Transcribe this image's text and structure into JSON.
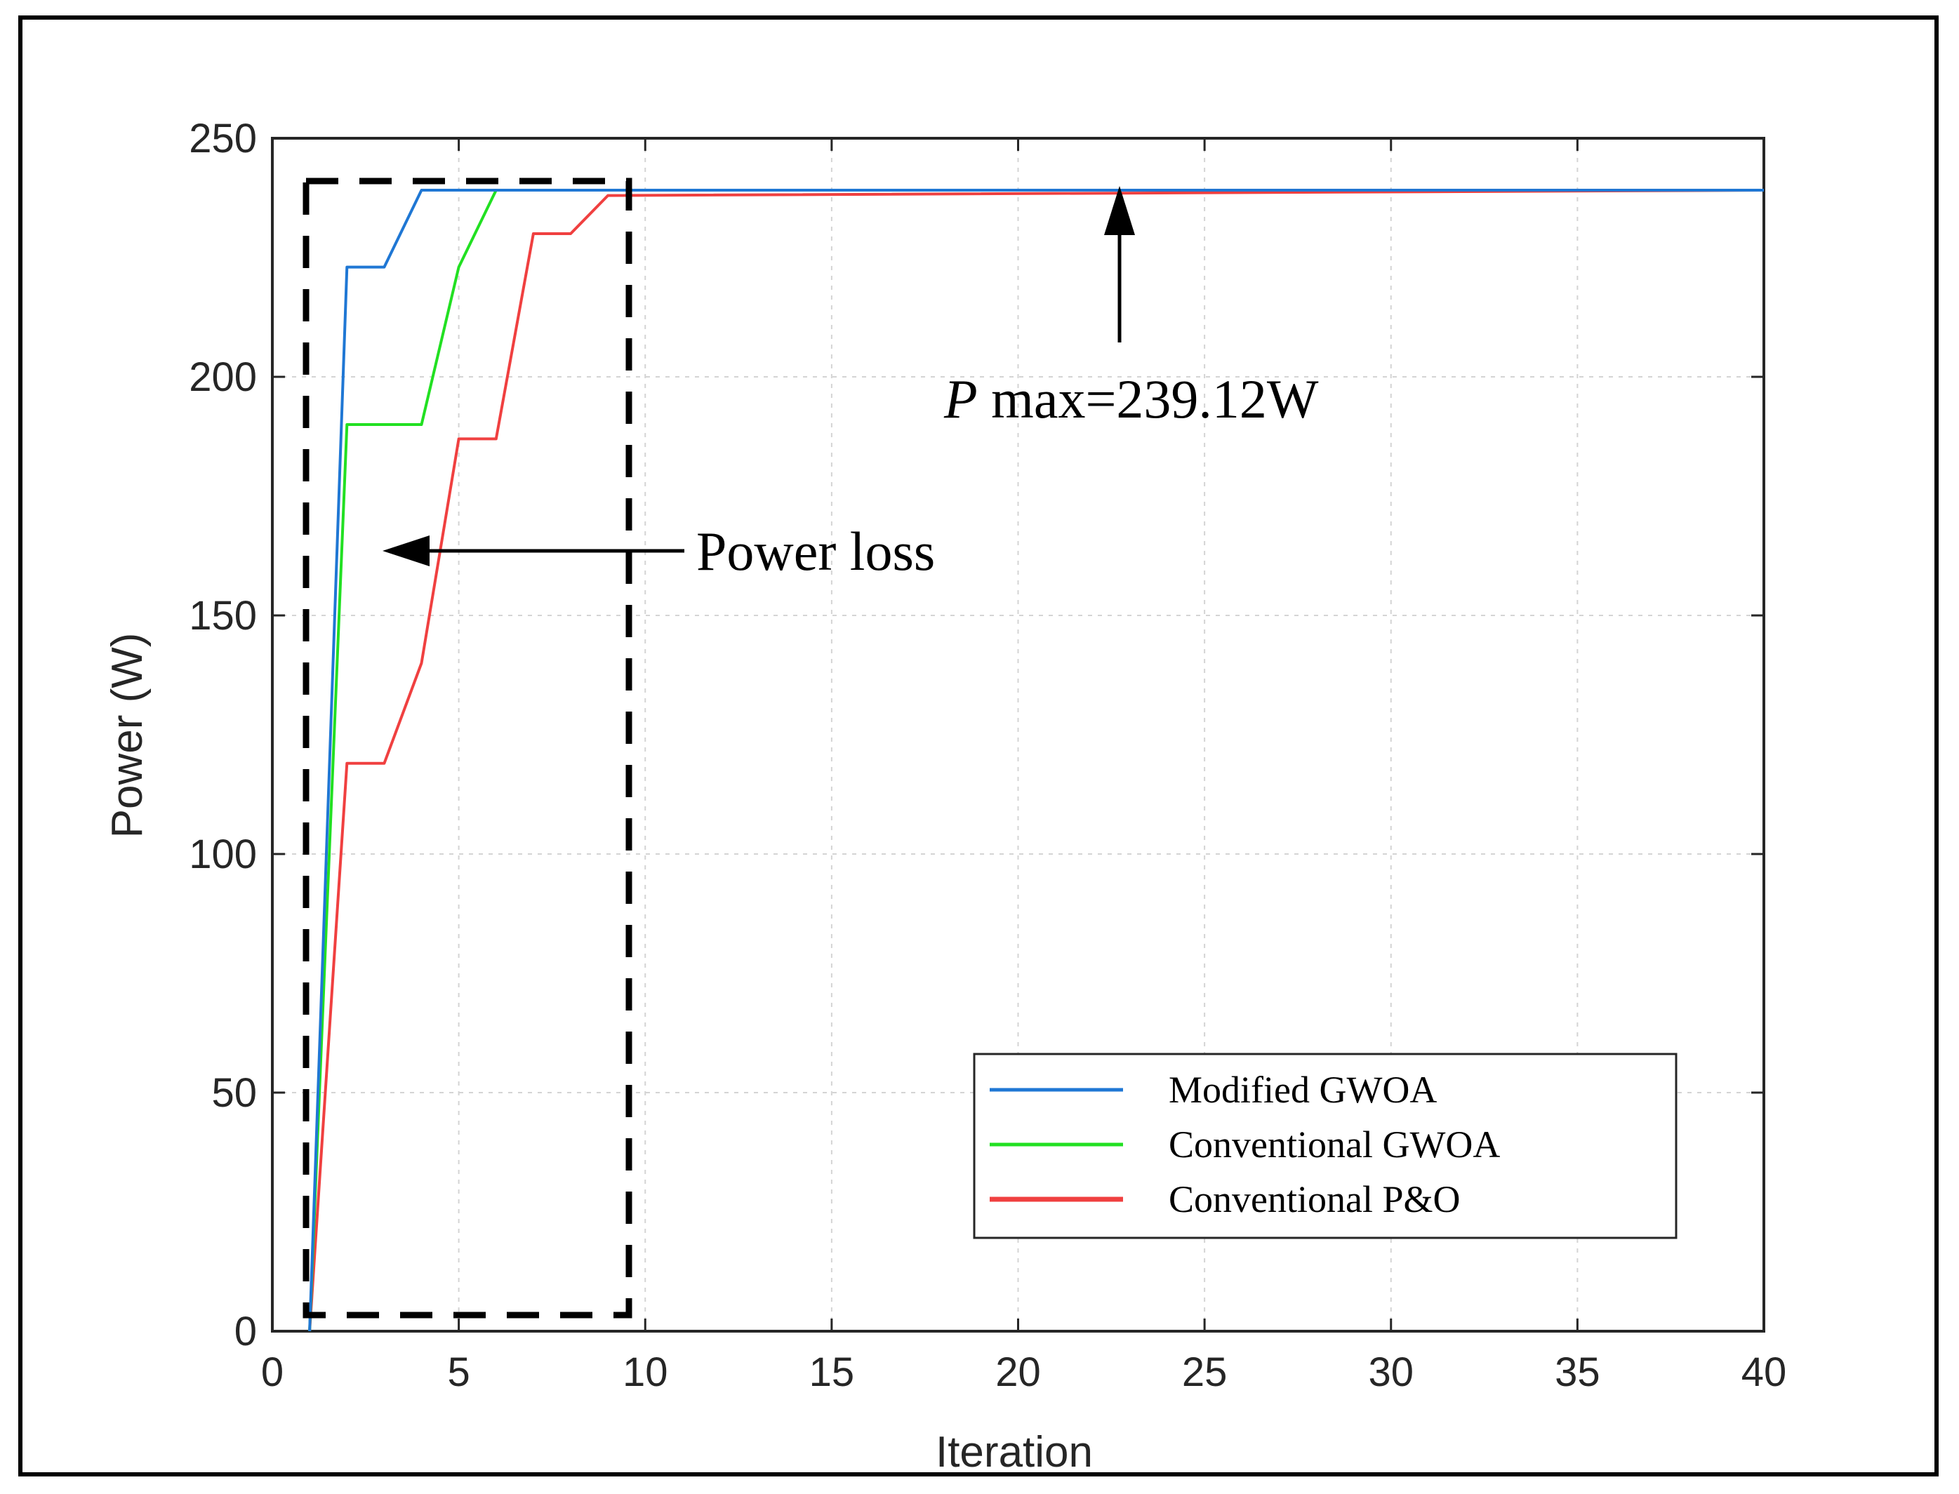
{
  "chart_data": {
    "type": "line",
    "xlabel": "Iteration",
    "ylabel": "Power (W)",
    "xlim": [
      0,
      40
    ],
    "ylim": [
      0,
      250
    ],
    "xticks": [
      0,
      5,
      10,
      15,
      20,
      25,
      30,
      35,
      40
    ],
    "yticks": [
      0,
      50,
      100,
      150,
      200,
      250
    ],
    "grid": true,
    "legend_position": "bottom-right",
    "series": [
      {
        "name": "Modified GWOA",
        "color": "#1f77d4",
        "points": [
          [
            1,
            0
          ],
          [
            2,
            223
          ],
          [
            3,
            223
          ],
          [
            4,
            239.12
          ],
          [
            40,
            239.12
          ]
        ]
      },
      {
        "name": "Conventional GWOA",
        "color": "#22e022",
        "points": [
          [
            1,
            0
          ],
          [
            2,
            190
          ],
          [
            4,
            190
          ],
          [
            5,
            223
          ],
          [
            6,
            239.12
          ],
          [
            40,
            239.12
          ]
        ]
      },
      {
        "name": "Conventional P&O",
        "color": "#f04040",
        "points": [
          [
            1,
            0
          ],
          [
            2,
            119
          ],
          [
            3,
            119
          ],
          [
            4,
            140
          ],
          [
            5,
            187
          ],
          [
            6,
            187
          ],
          [
            7,
            230
          ],
          [
            8,
            230
          ],
          [
            9,
            238
          ],
          [
            40,
            239.12
          ]
        ]
      }
    ],
    "annotations": {
      "pmax_label_italic": "P",
      "pmax_label_rest": " max=239.12W",
      "power_loss_label": "Power loss"
    }
  }
}
